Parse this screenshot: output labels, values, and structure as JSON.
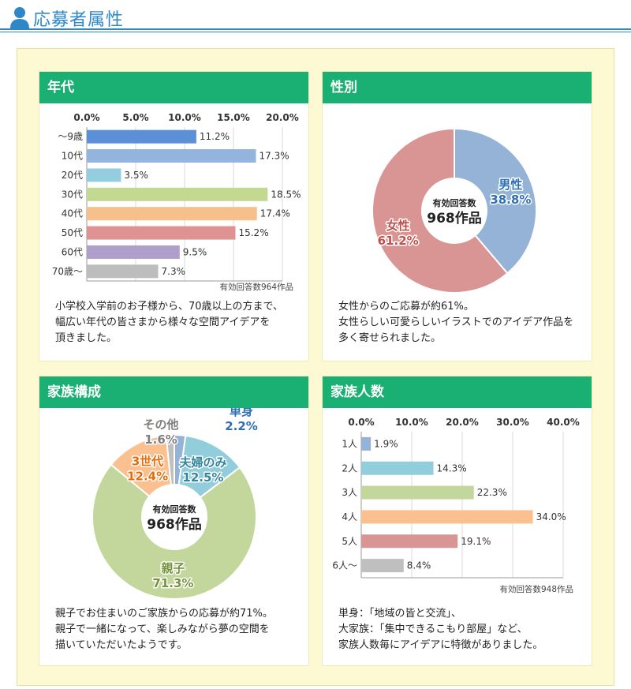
{
  "header": {
    "title": "応募者属性"
  },
  "panels": {
    "age": {
      "title": "年代",
      "desc": [
        "小学校入学前のお子様から、70歳以上の方まで、",
        "幅広い年代の皆さまから様々な空間アイデアを",
        "頂きました。"
      ]
    },
    "gender": {
      "title": "性別",
      "desc": [
        "女性からのご応募が約61%。",
        "女性らしい可愛らしいイラストでのアイデア作品を",
        "多く寄せられました。"
      ]
    },
    "family": {
      "title": "家族構成",
      "desc": [
        "親子でお住まいのご家族からの応募が約71%。",
        "親子で一緒になって、楽しみながら夢の空間を",
        "描いていただいたようです。"
      ]
    },
    "size": {
      "title": "家族人数",
      "desc": [
        "単身：「地域の皆と交流」、",
        "大家族：「集中できるこもり部屋」など、",
        "家族人数毎にアイデアに特徴がありました。"
      ]
    }
  },
  "chart_data": [
    {
      "id": "age",
      "type": "bar",
      "orientation": "horizontal",
      "categories": [
        "〜9歳",
        "10代",
        "20代",
        "30代",
        "40代",
        "50代",
        "60代",
        "70歳〜"
      ],
      "values": [
        11.2,
        17.3,
        3.5,
        18.5,
        17.4,
        15.2,
        9.5,
        7.3
      ],
      "value_labels": [
        "11.2%",
        "17.3%",
        "3.5%",
        "18.5%",
        "17.4%",
        "15.2%",
        "9.5%",
        "7.3%"
      ],
      "xticks": [
        "0.0%",
        "5.0%",
        "10.0%",
        "15.0%",
        "20.0%"
      ],
      "xlim": [
        0,
        20
      ],
      "colors": [
        "#5b8fd6",
        "#93b4dc",
        "#95cde0",
        "#c3d992",
        "#f7bf8c",
        "#de9291",
        "#b09fca",
        "#bdbdbd"
      ],
      "note": "有効回答数964作品",
      "grid": true
    },
    {
      "id": "gender",
      "type": "pie",
      "donut": true,
      "slices": [
        {
          "name": "男性",
          "value": 38.8,
          "label": "38.8%",
          "color": "#95b3d7"
        },
        {
          "name": "女性",
          "value": 61.2,
          "label": "61.2%",
          "color": "#d99594"
        }
      ],
      "center": [
        "有効回答数",
        "968作品"
      ]
    },
    {
      "id": "family",
      "type": "pie",
      "donut": true,
      "slices": [
        {
          "name": "単身",
          "value": 2.2,
          "label": "2.2%",
          "color": "#95b3d7"
        },
        {
          "name": "夫婦のみ",
          "value": 12.5,
          "label": "12.5%",
          "color": "#92cddc"
        },
        {
          "name": "親子",
          "value": 71.3,
          "label": "71.3%",
          "color": "#c3d69b"
        },
        {
          "name": "3世代",
          "value": 12.4,
          "label": "12.4%",
          "color": "#fac090"
        },
        {
          "name": "その他",
          "value": 1.6,
          "label": "1.6%",
          "color": "#bfbfbf"
        }
      ],
      "center": [
        "有効回答数",
        "968作品"
      ]
    },
    {
      "id": "size",
      "type": "bar",
      "orientation": "horizontal",
      "categories": [
        "1人",
        "2人",
        "3人",
        "4人",
        "5人",
        "6人〜"
      ],
      "values": [
        1.9,
        14.3,
        22.3,
        34.0,
        19.1,
        8.4
      ],
      "value_labels": [
        "1.9%",
        "14.3%",
        "22.3%",
        "34.0%",
        "19.1%",
        "8.4%"
      ],
      "xticks": [
        "0.0%",
        "10.0%",
        "20.0%",
        "30.0%",
        "40.0%"
      ],
      "xlim": [
        0,
        40
      ],
      "colors": [
        "#95b3d7",
        "#92cddc",
        "#c3d69b",
        "#fac090",
        "#d99594",
        "#bfbfbf"
      ],
      "note": "有効回答数948作品",
      "grid": true
    }
  ]
}
